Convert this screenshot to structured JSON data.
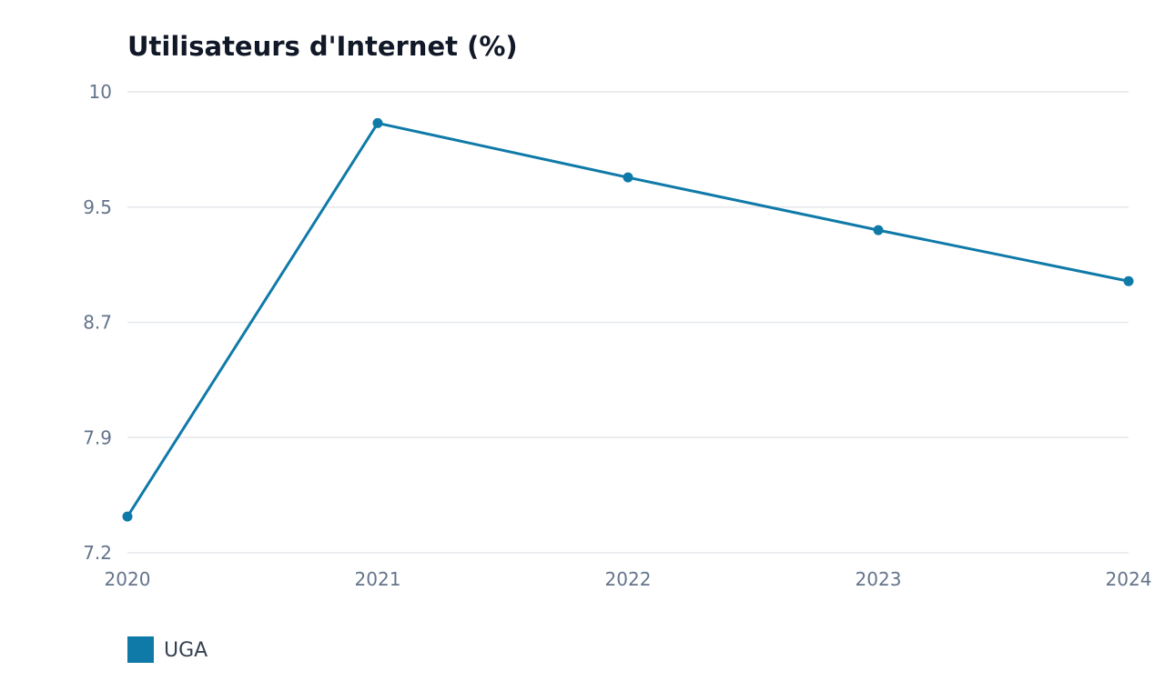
{
  "chart_data": {
    "type": "line",
    "title": "Utilisateurs d'Internet (%)",
    "xlabel": "",
    "ylabel": "",
    "categories": [
      "2020",
      "2021",
      "2022",
      "2023",
      "2024"
    ],
    "y_ticks": [
      "10",
      "9.5",
      "8.7",
      "7.9",
      "7.2"
    ],
    "ylim": [
      7.2,
      10
    ],
    "grid": true,
    "legend_position": "bottom-left",
    "series": [
      {
        "name": "UGA",
        "color": "#0f7aa8",
        "values": [
          7.42,
          9.81,
          9.48,
          9.16,
          8.85
        ]
      }
    ]
  }
}
